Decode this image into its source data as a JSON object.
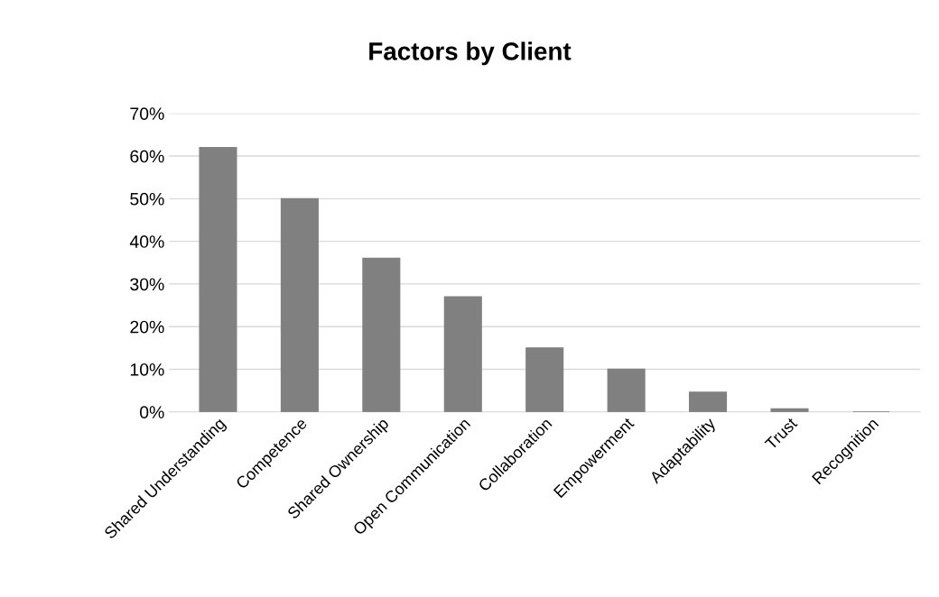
{
  "chart_data": {
    "type": "bar",
    "title": "Factors by Client",
    "categories": [
      "Shared Understanding",
      "Competence",
      "Shared Ownership",
      "Open Communication",
      "Collaboration",
      "Empowerment",
      "Adaptability",
      "Trust",
      "Recognition"
    ],
    "values": [
      62,
      50,
      36,
      27,
      15,
      10,
      4.6,
      0.7,
      0
    ],
    "color": "#808080",
    "ylim": [
      0,
      70
    ],
    "yticks": [
      {
        "value": 0,
        "label": "0%"
      },
      {
        "value": 10,
        "label": "10%"
      },
      {
        "value": 20,
        "label": "20%"
      },
      {
        "value": 30,
        "label": "30%"
      },
      {
        "value": 40,
        "label": "40%"
      },
      {
        "value": 50,
        "label": "50%"
      },
      {
        "value": 60,
        "label": "60%"
      },
      {
        "value": 70,
        "label": "70%"
      }
    ],
    "grid": "y",
    "legend": false
  }
}
